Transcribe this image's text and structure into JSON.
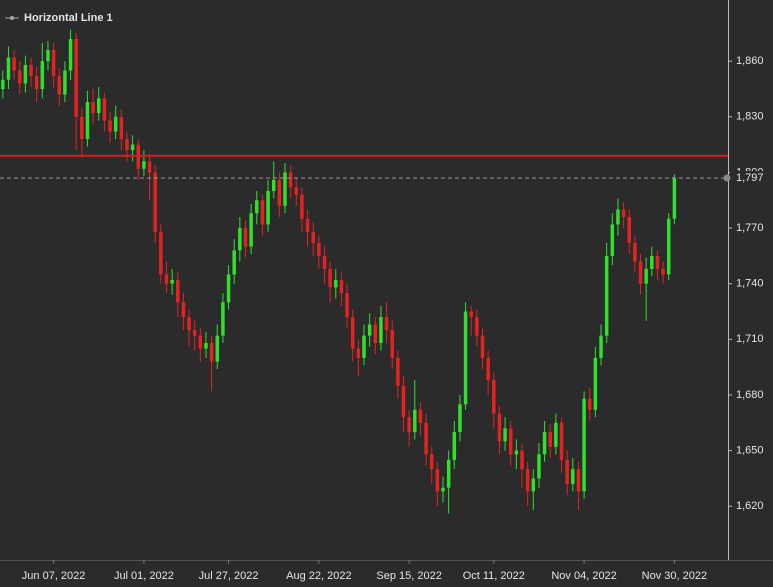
{
  "chart_data": {
    "type": "candlestick",
    "up_color": "#2fe02f",
    "down_color": "#e52222",
    "open": [
      1845,
      1850,
      1862,
      1855,
      1848,
      1858,
      1852,
      1845,
      1860,
      1866,
      1852,
      1842,
      1855,
      1872,
      1830,
      1818,
      1838,
      1832,
      1840,
      1828,
      1822,
      1830,
      1818,
      1812,
      1815,
      1802,
      1806,
      1800,
      1768,
      1745,
      1740,
      1742,
      1730,
      1722,
      1715,
      1712,
      1705,
      1708,
      1698,
      1712,
      1730,
      1745,
      1758,
      1770,
      1760,
      1778,
      1785,
      1772,
      1790,
      1796,
      1782,
      1800,
      1792,
      1788,
      1775,
      1768,
      1762,
      1755,
      1748,
      1738,
      1742,
      1735,
      1722,
      1705,
      1700,
      1712,
      1718,
      1708,
      1722,
      1715,
      1700,
      1685,
      1668,
      1660,
      1672,
      1665,
      1648,
      1640,
      1628,
      1630,
      1645,
      1660,
      1675,
      1725,
      1722,
      1712,
      1700,
      1688,
      1670,
      1655,
      1662,
      1648,
      1650,
      1640,
      1628,
      1635,
      1648,
      1660,
      1652,
      1665,
      1645,
      1632,
      1640,
      1628,
      1678,
      1672,
      1700,
      1712,
      1755,
      1772,
      1780,
      1776,
      1762,
      1752,
      1740,
      1748,
      1755,
      1748,
      1745,
      1775
    ],
    "high": [
      1855,
      1868,
      1866,
      1860,
      1863,
      1862,
      1857,
      1870,
      1871,
      1870,
      1856,
      1860,
      1877,
      1875,
      1835,
      1844,
      1845,
      1846,
      1843,
      1833,
      1836,
      1834,
      1822,
      1820,
      1818,
      1812,
      1810,
      1804,
      1772,
      1752,
      1748,
      1746,
      1735,
      1726,
      1720,
      1716,
      1714,
      1712,
      1718,
      1735,
      1750,
      1764,
      1776,
      1774,
      1783,
      1790,
      1788,
      1796,
      1806,
      1800,
      1805,
      1804,
      1797,
      1792,
      1780,
      1773,
      1766,
      1760,
      1752,
      1748,
      1746,
      1740,
      1726,
      1710,
      1718,
      1724,
      1722,
      1728,
      1730,
      1720,
      1704,
      1690,
      1672,
      1688,
      1676,
      1670,
      1652,
      1644,
      1636,
      1650,
      1666,
      1680,
      1730,
      1728,
      1726,
      1716,
      1704,
      1692,
      1674,
      1668,
      1666,
      1656,
      1654,
      1644,
      1640,
      1654,
      1666,
      1664,
      1670,
      1668,
      1650,
      1646,
      1644,
      1682,
      1684,
      1706,
      1718,
      1762,
      1778,
      1786,
      1784,
      1780,
      1766,
      1756,
      1754,
      1760,
      1758,
      1752,
      1778,
      1799
    ],
    "low": [
      1840,
      1845,
      1850,
      1842,
      1843,
      1846,
      1838,
      1840,
      1855,
      1846,
      1836,
      1838,
      1850,
      1812,
      1808,
      1814,
      1826,
      1828,
      1822,
      1816,
      1818,
      1812,
      1806,
      1806,
      1796,
      1798,
      1785,
      1762,
      1740,
      1735,
      1734,
      1722,
      1715,
      1706,
      1704,
      1698,
      1700,
      1682,
      1694,
      1708,
      1726,
      1740,
      1752,
      1754,
      1756,
      1772,
      1766,
      1768,
      1786,
      1776,
      1778,
      1786,
      1782,
      1768,
      1760,
      1755,
      1748,
      1740,
      1730,
      1732,
      1728,
      1716,
      1698,
      1690,
      1696,
      1706,
      1702,
      1704,
      1708,
      1694,
      1678,
      1660,
      1652,
      1656,
      1658,
      1642,
      1632,
      1620,
      1622,
      1616,
      1640,
      1655,
      1672,
      1712,
      1706,
      1694,
      1680,
      1662,
      1648,
      1650,
      1642,
      1640,
      1630,
      1620,
      1618,
      1630,
      1644,
      1646,
      1648,
      1638,
      1626,
      1628,
      1618,
      1624,
      1666,
      1668,
      1696,
      1708,
      1750,
      1766,
      1770,
      1756,
      1746,
      1734,
      1720,
      1744,
      1742,
      1740,
      1742,
      1772
    ],
    "close": [
      1850,
      1862,
      1855,
      1848,
      1858,
      1852,
      1845,
      1860,
      1866,
      1852,
      1842,
      1855,
      1872,
      1830,
      1818,
      1838,
      1832,
      1840,
      1828,
      1822,
      1830,
      1818,
      1812,
      1815,
      1802,
      1806,
      1800,
      1768,
      1745,
      1740,
      1742,
      1730,
      1722,
      1715,
      1712,
      1705,
      1708,
      1698,
      1712,
      1730,
      1745,
      1758,
      1770,
      1760,
      1778,
      1785,
      1772,
      1790,
      1796,
      1782,
      1800,
      1792,
      1788,
      1775,
      1768,
      1762,
      1755,
      1748,
      1738,
      1742,
      1735,
      1722,
      1705,
      1700,
      1712,
      1718,
      1708,
      1722,
      1715,
      1700,
      1685,
      1668,
      1660,
      1672,
      1665,
      1648,
      1640,
      1628,
      1630,
      1645,
      1660,
      1675,
      1725,
      1722,
      1712,
      1700,
      1688,
      1670,
      1655,
      1662,
      1648,
      1650,
      1640,
      1628,
      1635,
      1648,
      1660,
      1652,
      1665,
      1645,
      1632,
      1640,
      1628,
      1678,
      1672,
      1700,
      1712,
      1755,
      1772,
      1780,
      1776,
      1762,
      1752,
      1740,
      1748,
      1755,
      1748,
      1745,
      1775,
      1797
    ],
    "xlim": [
      -0.5,
      128.5
    ],
    "xticks": [
      {
        "value": 9,
        "label": "Jun 07, 2022"
      },
      {
        "value": 25,
        "label": "Jul 01, 2022"
      },
      {
        "value": 40,
        "label": "Jul 27, 2022"
      },
      {
        "value": 56,
        "label": "Aug 22, 2022"
      },
      {
        "value": 72,
        "label": "Sep 15, 2022"
      },
      {
        "value": 87,
        "label": "Oct 11, 2022"
      },
      {
        "value": 103,
        "label": "Nov 04, 2022"
      },
      {
        "value": 119,
        "label": "Nov 30, 2022"
      }
    ],
    "ylim": [
      1591,
      1893
    ],
    "yticks": [
      {
        "value": 1620,
        "label": "1,620"
      },
      {
        "value": 1650,
        "label": "1,650"
      },
      {
        "value": 1680,
        "label": "1,680"
      },
      {
        "value": 1710,
        "label": "1,710"
      },
      {
        "value": 1740,
        "label": "1,740"
      },
      {
        "value": 1770,
        "label": "1,770"
      },
      {
        "value": 1800,
        "label": "1,800"
      },
      {
        "value": 1830,
        "label": "1,830"
      },
      {
        "value": 1860,
        "label": "1,860"
      }
    ],
    "horizontal_line": {
      "name": "Horizontal Line 1",
      "value": 1809,
      "color": "#d42020"
    },
    "last_price": {
      "value": 1797,
      "label": "1,797"
    }
  }
}
